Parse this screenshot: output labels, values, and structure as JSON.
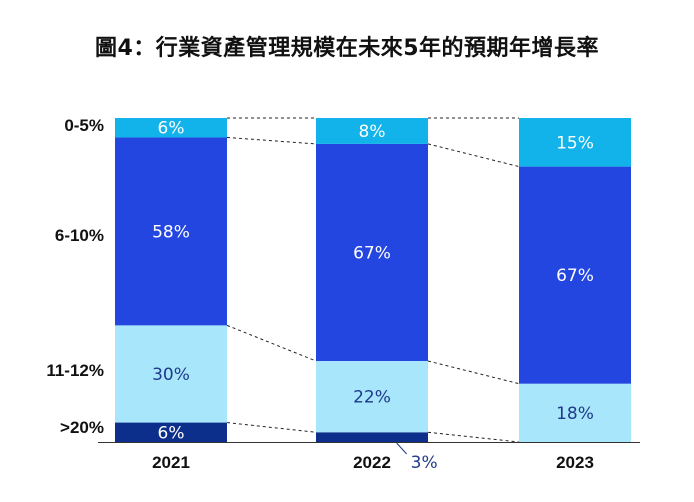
{
  "colors": {
    "0-5%": "#12b3ea",
    "6-10%": "#2346e0",
    "11-12%": "#a8e6fb",
    ">20%": "#0b2f8a",
    "axis": "#333333",
    "connector": "#222222"
  },
  "chart_data": {
    "type": "bar",
    "stacked": true,
    "percent_stacked": true,
    "title": "圖4：行業資產管理規模在未來5年的預期年增長率",
    "categories": [
      "2021",
      "2022",
      "2023"
    ],
    "row_labels": [
      "0-5%",
      "6-10%",
      "11-12%",
      ">20%"
    ],
    "series": [
      {
        "name": ">20%",
        "values": [
          6,
          3,
          0
        ],
        "labels": [
          "6%",
          "3%",
          ""
        ]
      },
      {
        "name": "11-12%",
        "values": [
          30,
          22,
          18
        ],
        "labels": [
          "30%",
          "22%",
          "18%"
        ]
      },
      {
        "name": "6-10%",
        "values": [
          58,
          67,
          67
        ],
        "labels": [
          "58%",
          "67%",
          "67%"
        ]
      },
      {
        "name": "0-5%",
        "values": [
          6,
          8,
          15
        ],
        "labels": [
          "6%",
          "8%",
          "15%"
        ]
      }
    ],
    "ylim": [
      0,
      100
    ],
    "grid": false,
    "legend": "none",
    "connectors": "dashed"
  }
}
